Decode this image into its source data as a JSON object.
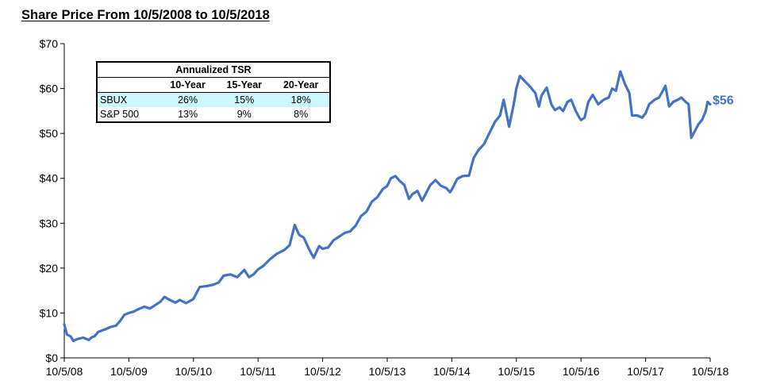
{
  "chart_data": {
    "type": "line",
    "title": "Share Price From 10/5/2008 to 10/5/2018",
    "xlabel": "",
    "ylabel": "",
    "ylim": [
      0,
      70
    ],
    "xlim": [
      "2008-10-05",
      "2018-10-05"
    ],
    "yticks": [
      "$0",
      "$10",
      "$20",
      "$30",
      "$40",
      "$50",
      "$60",
      "$70"
    ],
    "xticks": [
      "10/5/08",
      "10/5/09",
      "10/5/10",
      "10/5/11",
      "10/5/12",
      "10/5/13",
      "10/5/14",
      "10/5/15",
      "10/5/16",
      "10/5/17",
      "10/5/18"
    ],
    "grid": false,
    "legend": "none",
    "series_color": "#4472c4",
    "end_label": "$56",
    "series": [
      {
        "points": [
          [
            "2008-10-05",
            7.5
          ],
          [
            "2008-10-20",
            5.2
          ],
          [
            "2008-11-10",
            4.8
          ],
          [
            "2008-11-25",
            3.8
          ],
          [
            "2008-12-20",
            4.2
          ],
          [
            "2009-01-20",
            4.5
          ],
          [
            "2009-02-20",
            4.0
          ],
          [
            "2009-03-10",
            4.6
          ],
          [
            "2009-03-25",
            4.8
          ],
          [
            "2009-04-15",
            5.8
          ],
          [
            "2009-05-20",
            6.3
          ],
          [
            "2009-06-25",
            6.9
          ],
          [
            "2009-07-25",
            7.2
          ],
          [
            "2009-08-20",
            8.4
          ],
          [
            "2009-09-10",
            9.6
          ],
          [
            "2009-10-05",
            10.0
          ],
          [
            "2009-11-01",
            10.3
          ],
          [
            "2009-12-01",
            10.9
          ],
          [
            "2010-01-01",
            11.4
          ],
          [
            "2010-02-01",
            11.0
          ],
          [
            "2010-03-01",
            11.7
          ],
          [
            "2010-04-01",
            12.5
          ],
          [
            "2010-04-25",
            13.6
          ],
          [
            "2010-05-20",
            13.0
          ],
          [
            "2010-06-25",
            12.3
          ],
          [
            "2010-07-20",
            12.9
          ],
          [
            "2010-08-25",
            12.2
          ],
          [
            "2010-10-05",
            13.1
          ],
          [
            "2010-11-10",
            15.8
          ],
          [
            "2010-12-20",
            16.0
          ],
          [
            "2011-01-25",
            16.3
          ],
          [
            "2011-02-25",
            16.8
          ],
          [
            "2011-03-25",
            18.3
          ],
          [
            "2011-05-01",
            18.6
          ],
          [
            "2011-06-10",
            18.0
          ],
          [
            "2011-07-20",
            19.6
          ],
          [
            "2011-08-15",
            18.0
          ],
          [
            "2011-09-10",
            18.6
          ],
          [
            "2011-10-05",
            19.7
          ],
          [
            "2011-11-05",
            20.5
          ],
          [
            "2011-12-10",
            21.9
          ],
          [
            "2012-01-20",
            23.2
          ],
          [
            "2012-03-01",
            24.0
          ],
          [
            "2012-04-01",
            25.1
          ],
          [
            "2012-04-30",
            29.6
          ],
          [
            "2012-05-25",
            27.4
          ],
          [
            "2012-06-20",
            26.8
          ],
          [
            "2012-07-20",
            24.2
          ],
          [
            "2012-08-15",
            22.3
          ],
          [
            "2012-09-15",
            24.9
          ],
          [
            "2012-10-05",
            24.3
          ],
          [
            "2012-11-05",
            24.6
          ],
          [
            "2012-12-05",
            26.2
          ],
          [
            "2013-01-05",
            27.0
          ],
          [
            "2013-02-05",
            27.8
          ],
          [
            "2013-03-10",
            28.2
          ],
          [
            "2013-04-10",
            29.5
          ],
          [
            "2013-05-10",
            31.6
          ],
          [
            "2013-06-10",
            32.6
          ],
          [
            "2013-07-10",
            34.8
          ],
          [
            "2013-08-10",
            35.8
          ],
          [
            "2013-09-10",
            37.6
          ],
          [
            "2013-10-05",
            38.3
          ],
          [
            "2013-10-25",
            40.0
          ],
          [
            "2013-11-20",
            40.5
          ],
          [
            "2013-12-15",
            39.4
          ],
          [
            "2014-01-10",
            38.5
          ],
          [
            "2014-02-05",
            35.4
          ],
          [
            "2014-02-25",
            36.5
          ],
          [
            "2014-03-25",
            37.2
          ],
          [
            "2014-04-20",
            35.0
          ],
          [
            "2014-05-10",
            36.5
          ],
          [
            "2014-06-05",
            38.5
          ],
          [
            "2014-07-05",
            39.6
          ],
          [
            "2014-08-05",
            38.3
          ],
          [
            "2014-09-05",
            37.8
          ],
          [
            "2014-09-25",
            36.9
          ],
          [
            "2014-10-05",
            37.5
          ],
          [
            "2014-11-05",
            39.9
          ],
          [
            "2014-12-05",
            40.5
          ],
          [
            "2015-01-10",
            40.6
          ],
          [
            "2015-02-05",
            44.5
          ],
          [
            "2015-03-05",
            46.3
          ],
          [
            "2015-04-05",
            47.6
          ],
          [
            "2015-05-05",
            50.0
          ],
          [
            "2015-06-05",
            52.5
          ],
          [
            "2015-07-05",
            54.0
          ],
          [
            "2015-07-25",
            57.5
          ],
          [
            "2015-08-25",
            51.5
          ],
          [
            "2015-09-20",
            56.5
          ],
          [
            "2015-10-05",
            60.0
          ],
          [
            "2015-10-25",
            62.8
          ],
          [
            "2015-11-25",
            61.5
          ],
          [
            "2015-12-20",
            60.5
          ],
          [
            "2016-01-20",
            59.0
          ],
          [
            "2016-02-10",
            56.0
          ],
          [
            "2016-02-25",
            58.5
          ],
          [
            "2016-03-25",
            60.2
          ],
          [
            "2016-04-20",
            56.5
          ],
          [
            "2016-05-10",
            55.2
          ],
          [
            "2016-06-05",
            55.8
          ],
          [
            "2016-06-25",
            55.0
          ],
          [
            "2016-07-20",
            57.0
          ],
          [
            "2016-08-10",
            57.5
          ],
          [
            "2016-09-05",
            55.0
          ],
          [
            "2016-09-25",
            53.5
          ],
          [
            "2016-10-05",
            53.0
          ],
          [
            "2016-10-25",
            53.5
          ],
          [
            "2016-11-15",
            57.0
          ],
          [
            "2016-12-10",
            58.6
          ],
          [
            "2017-01-10",
            56.5
          ],
          [
            "2017-02-10",
            57.5
          ],
          [
            "2017-03-10",
            58.0
          ],
          [
            "2017-03-30",
            60.0
          ],
          [
            "2017-04-20",
            59.5
          ],
          [
            "2017-05-15",
            63.8
          ],
          [
            "2017-06-10",
            61.0
          ],
          [
            "2017-07-05",
            59.0
          ],
          [
            "2017-07-20",
            54.0
          ],
          [
            "2017-08-20",
            54.0
          ],
          [
            "2017-09-15",
            53.5
          ],
          [
            "2017-10-05",
            54.5
          ],
          [
            "2017-10-25",
            56.5
          ],
          [
            "2017-11-25",
            57.5
          ],
          [
            "2017-12-20",
            58.0
          ],
          [
            "2018-01-10",
            59.5
          ],
          [
            "2018-01-25",
            60.6
          ],
          [
            "2018-02-15",
            56.0
          ],
          [
            "2018-03-10",
            57.0
          ],
          [
            "2018-04-05",
            57.5
          ],
          [
            "2018-04-25",
            58.0
          ],
          [
            "2018-05-20",
            57.0
          ],
          [
            "2018-06-05",
            56.5
          ],
          [
            "2018-06-20",
            49.0
          ],
          [
            "2018-07-10",
            50.5
          ],
          [
            "2018-07-30",
            52.0
          ],
          [
            "2018-08-20",
            53.0
          ],
          [
            "2018-09-10",
            55.0
          ],
          [
            "2018-09-20",
            57.0
          ],
          [
            "2018-10-05",
            56.5
          ]
        ]
      }
    ]
  },
  "tsr_table": {
    "title": "Annualized TSR",
    "columns": [
      "10-Year",
      "15-Year",
      "20-Year"
    ],
    "rows": [
      {
        "label": "SBUX",
        "values": [
          "26%",
          "15%",
          "18%"
        ],
        "highlight_color": "#ccf8fb"
      },
      {
        "label": "S&P 500",
        "values": [
          "13%",
          "9%",
          "8%"
        ]
      }
    ]
  }
}
